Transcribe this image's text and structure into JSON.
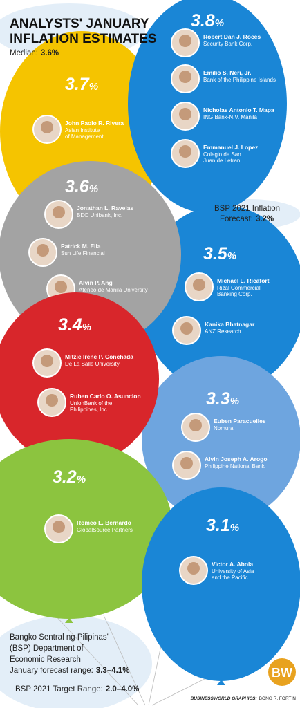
{
  "header": {
    "title": [
      "ANALYSTS' JANUARY",
      "INFLATION ESTIMATES"
    ],
    "median_label": "Median:",
    "median_value": "3.6%"
  },
  "balloons": [
    {
      "estimate": "3.8",
      "unit": "%",
      "analysts": [
        {
          "name": "Robert Dan J. Roces",
          "affiliation": [
            "Security Bank Corp."
          ]
        },
        {
          "name": "Emilio S. Neri, Jr.",
          "affiliation": [
            "Bank of the Philippine Islands"
          ]
        },
        {
          "name": "Nicholas Antonio T. Mapa",
          "affiliation": [
            "ING Bank-N.V. Manila"
          ]
        },
        {
          "name": "Emmanuel J. Lopez",
          "affiliation": [
            "Colegio de San",
            "Juan de Letran"
          ]
        }
      ]
    },
    {
      "estimate": "3.7",
      "unit": "%",
      "analysts": [
        {
          "name": "John Paolo R. Rivera",
          "affiliation": [
            "Asian Institute",
            "of Management"
          ]
        }
      ]
    },
    {
      "estimate": "3.6",
      "unit": "%",
      "analysts": [
        {
          "name": "Jonathan L. Ravelas",
          "affiliation": [
            "BDO Unibank, Inc."
          ]
        },
        {
          "name": "Patrick M. Ella",
          "affiliation": [
            "Sun Life Financial"
          ]
        },
        {
          "name": "Alvin P. Ang",
          "affiliation": [
            "Ateneo de Manila University"
          ]
        }
      ]
    },
    {
      "estimate": "3.5",
      "unit": "%",
      "analysts": [
        {
          "name": "Michael L. Ricafort",
          "affiliation": [
            "Rizal Commercial",
            "Banking Corp."
          ]
        },
        {
          "name": "Kanika Bhatnagar",
          "affiliation": [
            "ANZ Research"
          ]
        }
      ]
    },
    {
      "estimate": "3.4",
      "unit": "%",
      "analysts": [
        {
          "name": "Mitzie Irene P. Conchada",
          "affiliation": [
            "De La Salle University"
          ]
        },
        {
          "name": "Ruben Carlo O. Asuncion",
          "affiliation": [
            "UnionBank of the",
            "Philippines, Inc."
          ]
        }
      ]
    },
    {
      "estimate": "3.3",
      "unit": "%",
      "analysts": [
        {
          "name": "Euben Paracuelles",
          "affiliation": [
            "Nomura"
          ]
        },
        {
          "name": "Alvin Joseph A. Arogo",
          "affiliation": [
            "Philippine National Bank"
          ]
        }
      ]
    },
    {
      "estimate": "3.2",
      "unit": "%",
      "analysts": [
        {
          "name": "Romeo L. Bernardo",
          "affiliation": [
            "GlobalSource Partners"
          ]
        }
      ]
    },
    {
      "estimate": "3.1",
      "unit": "%",
      "analysts": [
        {
          "name": "Victor A. Abola",
          "affiliation": [
            "University of Asia",
            "and the Pacific"
          ]
        }
      ]
    }
  ],
  "notes": {
    "bsp_forecast": {
      "label": [
        "BSP 2021 Inflation",
        "Forecast:"
      ],
      "value": "3.2%"
    },
    "der_range": {
      "label": [
        "Bangko Sentral ng Pilipinas'",
        "(BSP) Department of",
        "Economic Research",
        "January forecast range:"
      ],
      "value": "3.3–4.1%"
    },
    "target_range": {
      "label": "BSP 2021 Target Range:",
      "value": "2.0–4.0%"
    }
  },
  "footer": {
    "credit": "BUSINESSWORLD GRAPHICS:",
    "author": "BONG R. FORTIN",
    "logo": "BW"
  }
}
